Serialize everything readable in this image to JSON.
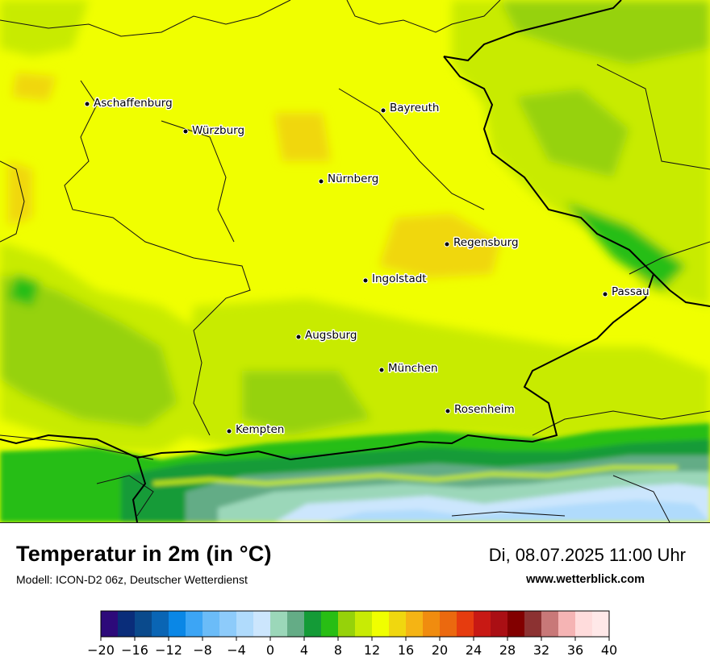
{
  "header": {
    "title": "Temperatur in 2m (in °C)",
    "subtitle": "Modell: ICON-D2 06z, Deutscher Wetterdienst",
    "datetime": "Di, 08.07.2025 11:00 Uhr",
    "website": "www.wetterblick.com"
  },
  "map": {
    "cities": [
      {
        "name": "Aschaffenburg"
      },
      {
        "name": "Würzburg"
      },
      {
        "name": "Bayreuth"
      },
      {
        "name": "Nürnberg"
      },
      {
        "name": "Regensburg"
      },
      {
        "name": "Ingolstadt"
      },
      {
        "name": "Passau"
      },
      {
        "name": "Augsburg"
      },
      {
        "name": "München"
      },
      {
        "name": "Rosenheim"
      },
      {
        "name": "Kempten"
      }
    ]
  },
  "legend": {
    "unit": "°C",
    "min": -20,
    "max": 40,
    "step": 2,
    "tick_labels": [
      "−20",
      "−16",
      "−12",
      "−8",
      "−4",
      "0",
      "4",
      "8",
      "12",
      "16",
      "20",
      "24",
      "28",
      "32",
      "36",
      "40"
    ],
    "colors": [
      "#2d0a7a",
      "#0a2d7a",
      "#0a4a8c",
      "#0a65b4",
      "#0a87e6",
      "#3ca5f5",
      "#6bbcf8",
      "#8dcbfa",
      "#b0dbfc",
      "#cce6fd",
      "#9bd7b9",
      "#64ac86",
      "#149b37",
      "#28be14",
      "#96d20a",
      "#c8eb05",
      "#f0ff00",
      "#f0d70f",
      "#f5b414",
      "#f08c0f",
      "#eb690f",
      "#e63c0f",
      "#c81914",
      "#aa0f14",
      "#820000",
      "#8c3232",
      "#c87878",
      "#f5b4b4",
      "#ffdcdc",
      "#ffe8e8"
    ]
  }
}
